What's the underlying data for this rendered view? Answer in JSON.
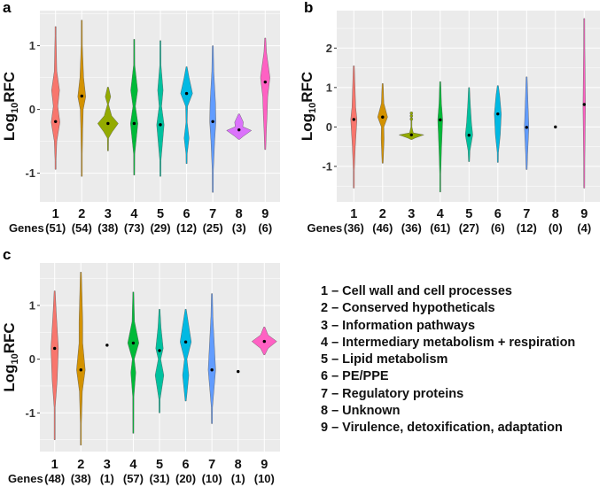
{
  "palette": [
    "#F8766D",
    "#D39200",
    "#93AA00",
    "#00BA38",
    "#00C19F",
    "#00B9E3",
    "#619CFF",
    "#DB72FB",
    "#FF61C3"
  ],
  "panel_background": "#EBEBEB",
  "chart_data": [
    {
      "type": "violin",
      "panel_label": "a",
      "ylabel_parts": [
        "Log",
        "10",
        "RFC"
      ],
      "ylim": [
        -1.45,
        1.55
      ],
      "yticks": [
        -1,
        0,
        1
      ],
      "ytick_labels": [
        "-1",
        "0",
        "1"
      ],
      "grid": true,
      "categories": [
        "1",
        "2",
        "3",
        "4",
        "5",
        "6",
        "7",
        "8",
        "9"
      ],
      "genes_label": "Genes",
      "gene_counts": [
        "(51)",
        "(54)",
        "(38)",
        "(73)",
        "(29)",
        "(12)",
        "(25)",
        "(3)",
        "(6)"
      ],
      "medians": [
        -0.19,
        0.21,
        -0.22,
        -0.22,
        -0.24,
        0.25,
        -0.19,
        -0.32,
        0.43
      ],
      "density_profiles": [
        [
          [
            1.3,
            0
          ],
          [
            1.15,
            0.03
          ],
          [
            0.6,
            0.1
          ],
          [
            0.3,
            0.32
          ],
          [
            0.05,
            0.18
          ],
          [
            -0.2,
            0.35
          ],
          [
            -0.5,
            0.1
          ],
          [
            -0.8,
            0.03
          ],
          [
            -0.94,
            0
          ]
        ],
        [
          [
            1.4,
            0
          ],
          [
            1.0,
            0.05
          ],
          [
            0.5,
            0.15
          ],
          [
            0.2,
            0.32
          ],
          [
            0,
            0.12
          ],
          [
            -0.3,
            0.08
          ],
          [
            -0.7,
            0.03
          ],
          [
            -1.05,
            0
          ]
        ],
        [
          [
            0.35,
            0
          ],
          [
            0.2,
            0.22
          ],
          [
            0.08,
            0.03
          ],
          [
            -0.1,
            0.3
          ],
          [
            -0.22,
            0.83
          ],
          [
            -0.35,
            0.35
          ],
          [
            -0.45,
            0.05
          ],
          [
            -0.65,
            0
          ]
        ],
        [
          [
            1.1,
            0
          ],
          [
            0.7,
            0.05
          ],
          [
            0.3,
            0.28
          ],
          [
            0.05,
            0.1
          ],
          [
            -0.22,
            0.3
          ],
          [
            -0.7,
            0.05
          ],
          [
            -1.03,
            0
          ]
        ],
        [
          [
            1.08,
            0
          ],
          [
            0.7,
            0.05
          ],
          [
            0.3,
            0.22
          ],
          [
            0.05,
            0.1
          ],
          [
            -0.24,
            0.3
          ],
          [
            -0.8,
            0.05
          ],
          [
            -1.05,
            0
          ]
        ],
        [
          [
            0.67,
            0
          ],
          [
            0.5,
            0.2
          ],
          [
            0.25,
            0.48
          ],
          [
            0.05,
            0.08
          ],
          [
            -0.2,
            0.05
          ],
          [
            -0.45,
            0.2
          ],
          [
            -0.7,
            0.05
          ],
          [
            -0.85,
            0
          ]
        ],
        [
          [
            1.0,
            0
          ],
          [
            0.6,
            0.08
          ],
          [
            0.1,
            0.22
          ],
          [
            -0.19,
            0.25
          ],
          [
            -0.5,
            0.15
          ],
          [
            -0.95,
            0.05
          ],
          [
            -1.3,
            0
          ]
        ],
        [
          [
            -0.07,
            0
          ],
          [
            -0.2,
            0.35
          ],
          [
            -0.27,
            0.3
          ],
          [
            -0.33,
            1.0
          ],
          [
            -0.42,
            0.35
          ],
          [
            -0.47,
            0
          ]
        ],
        [
          [
            1.12,
            0
          ],
          [
            0.9,
            0.1
          ],
          [
            0.5,
            0.38
          ],
          [
            0.2,
            0.2
          ],
          [
            -0.1,
            0.15
          ],
          [
            -0.3,
            0.1
          ],
          [
            -0.63,
            0
          ]
        ]
      ],
      "outliers": [
        [],
        [],
        [],
        [],
        [],
        [],
        [],
        [],
        []
      ]
    },
    {
      "type": "violin",
      "panel_label": "b",
      "ylabel_parts": [
        "Log",
        "10",
        "RFC"
      ],
      "ylim": [
        -1.9,
        2.95
      ],
      "yticks": [
        -1,
        0,
        1,
        2
      ],
      "ytick_labels": [
        "-1",
        "0",
        "1",
        "2"
      ],
      "grid": true,
      "categories": [
        "1",
        "2",
        "3",
        "4",
        "5",
        "6",
        "7",
        "8",
        "9"
      ],
      "genes_label": "Genes",
      "gene_counts": [
        "(36)",
        "(46)",
        "(36)",
        "(61)",
        "(27)",
        "(6)",
        "(12)",
        "(0)",
        "(4)"
      ],
      "medians": [
        0.19,
        0.25,
        -0.2,
        0.18,
        -0.21,
        0.33,
        -0.01,
        0.0,
        0.57
      ],
      "density_profiles": [
        [
          [
            1.55,
            0
          ],
          [
            0.5,
            0.15
          ],
          [
            0.19,
            0.25
          ],
          [
            -0.5,
            0.12
          ],
          [
            -1.1,
            0.03
          ],
          [
            -1.55,
            0
          ]
        ],
        [
          [
            1.1,
            0
          ],
          [
            0.6,
            0.1
          ],
          [
            0.25,
            0.4
          ],
          [
            0,
            0.1
          ],
          [
            -0.3,
            0.12
          ],
          [
            -0.92,
            0
          ]
        ],
        [
          [
            0.35,
            0.04
          ],
          [
            0.0,
            0.03
          ],
          [
            -0.15,
            0.15
          ],
          [
            -0.2,
            1.0
          ],
          [
            -0.28,
            0.3
          ],
          [
            -0.32,
            0
          ]
        ],
        [
          [
            1.15,
            0
          ],
          [
            0.6,
            0.1
          ],
          [
            0.18,
            0.2
          ],
          [
            -0.2,
            0.15
          ],
          [
            -0.6,
            0.1
          ],
          [
            -1.2,
            0.03
          ],
          [
            -1.65,
            0
          ]
        ],
        [
          [
            1.0,
            0
          ],
          [
            0.6,
            0.1
          ],
          [
            0.1,
            0.2
          ],
          [
            -0.2,
            0.3
          ],
          [
            -0.6,
            0.08
          ],
          [
            -0.88,
            0
          ]
        ],
        [
          [
            1.05,
            0
          ],
          [
            0.8,
            0.15
          ],
          [
            0.33,
            0.28
          ],
          [
            -0.2,
            0.2
          ],
          [
            -0.65,
            0.05
          ],
          [
            -0.9,
            0
          ]
        ],
        [
          [
            1.27,
            0
          ],
          [
            0.7,
            0.1
          ],
          [
            0,
            0.18
          ],
          [
            -0.7,
            0.08
          ],
          [
            -1.08,
            0
          ]
        ],
        [],
        [
          [
            2.75,
            0
          ],
          [
            2.0,
            0.05
          ],
          [
            0.5,
            0.1
          ],
          [
            -0.8,
            0.05
          ],
          [
            -1.55,
            0
          ]
        ]
      ],
      "outliers": [
        [],
        [],
        [
          0.35,
          0.28,
          0.2
        ],
        [],
        [],
        [],
        [],
        [],
        []
      ]
    },
    {
      "type": "violin",
      "panel_label": "c",
      "ylabel_parts": [
        "Log",
        "10",
        "RFC"
      ],
      "ylim": [
        -1.72,
        1.79
      ],
      "yticks": [
        -1,
        0,
        1
      ],
      "ytick_labels": [
        "-1",
        "0",
        "1"
      ],
      "grid": true,
      "categories": [
        "1",
        "2",
        "3",
        "4",
        "5",
        "6",
        "7",
        "8",
        "9"
      ],
      "genes_label": "Genes",
      "gene_counts": [
        "(48)",
        "(38)",
        "(1)",
        "(57)",
        "(31)",
        "(20)",
        "(10)",
        "(1)",
        "(10)"
      ],
      "medians": [
        0.2,
        -0.2,
        0.26,
        0.3,
        0.16,
        0.32,
        -0.2,
        -0.23,
        0.33
      ],
      "density_profiles": [
        [
          [
            1.27,
            0
          ],
          [
            0.9,
            0.12
          ],
          [
            0.2,
            0.3
          ],
          [
            -0.4,
            0.2
          ],
          [
            -0.9,
            0.03
          ],
          [
            -1.5,
            0
          ]
        ],
        [
          [
            1.62,
            0
          ],
          [
            0.7,
            0.15
          ],
          [
            0.3,
            0.15
          ],
          [
            -0.2,
            0.35
          ],
          [
            -0.6,
            0.12
          ],
          [
            -1.2,
            0.03
          ],
          [
            -1.6,
            0
          ]
        ],
        [],
        [
          [
            1.25,
            0
          ],
          [
            0.7,
            0.1
          ],
          [
            0.3,
            0.45
          ],
          [
            0.0,
            0.08
          ],
          [
            -0.25,
            0.2
          ],
          [
            -0.7,
            0.05
          ],
          [
            -1.38,
            0
          ]
        ],
        [
          [
            0.93,
            0
          ],
          [
            0.6,
            0.12
          ],
          [
            0.2,
            0.3
          ],
          [
            0.0,
            0.1
          ],
          [
            -0.3,
            0.35
          ],
          [
            -0.75,
            0.05
          ],
          [
            -1.0,
            0
          ]
        ],
        [
          [
            0.93,
            0
          ],
          [
            0.32,
            0.45
          ],
          [
            0,
            0.1
          ],
          [
            -0.3,
            0.25
          ],
          [
            -0.78,
            0
          ]
        ],
        [
          [
            1.22,
            0
          ],
          [
            0.8,
            0.08
          ],
          [
            -0.2,
            0.3
          ],
          [
            -0.9,
            0.05
          ],
          [
            -1.2,
            0
          ]
        ],
        [],
        [
          [
            0.6,
            0
          ],
          [
            0.45,
            0.3
          ],
          [
            0.33,
            1.0
          ],
          [
            0.2,
            0.3
          ],
          [
            0.08,
            0
          ]
        ]
      ],
      "outliers": [
        [],
        [],
        [],
        [],
        [],
        [],
        [],
        [],
        []
      ]
    }
  ],
  "legend": {
    "items": [
      "1 – Cell wall and cell processes",
      "2 – Conserved hypotheticals",
      "3 – Information pathways",
      "4 – Intermediary metabolism + respiration",
      "5 – Lipid metabolism",
      "6 – PE/PPE",
      "7 – Regulatory proteins",
      "8 – Unknown",
      "9 – Virulence, detoxification, adaptation"
    ]
  }
}
